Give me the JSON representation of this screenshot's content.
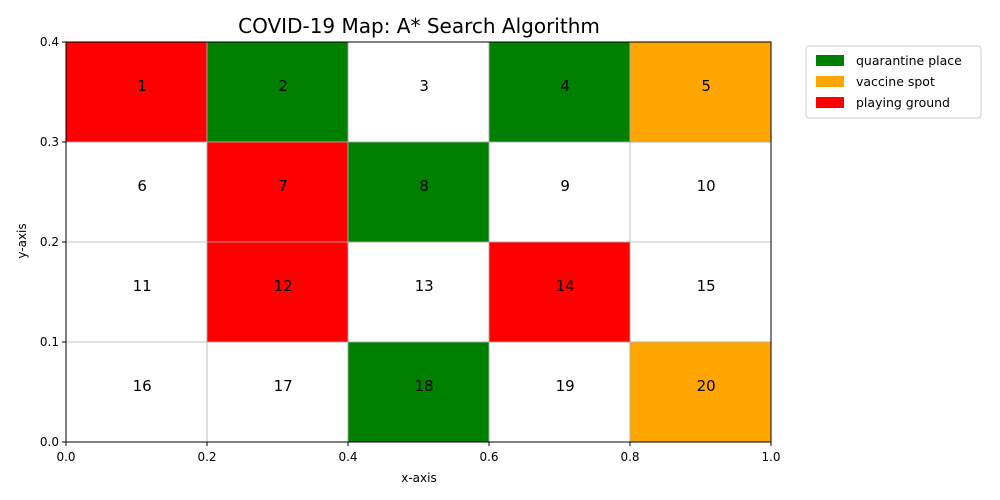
{
  "chart_data": {
    "type": "heatmap",
    "title": "COVID-19 Map: A* Search Algorithm",
    "xlabel": "x-axis",
    "ylabel": "y-axis",
    "xlim": [
      0.0,
      1.0
    ],
    "ylim": [
      0.0,
      0.4
    ],
    "xticks": [
      "0.0",
      "0.2",
      "0.4",
      "0.6",
      "0.8",
      "1.0"
    ],
    "yticks": [
      "0.0",
      "0.1",
      "0.2",
      "0.3",
      "0.4"
    ],
    "grid": true,
    "grid_columns": 5,
    "grid_rows": 4,
    "legend_position": "outside-top-right",
    "legend": [
      {
        "label": "quarantine place",
        "color": "#008000"
      },
      {
        "label": "vaccine spot",
        "color": "#FFA500"
      },
      {
        "label": "playing ground",
        "color": "#FF0000"
      }
    ],
    "cells": [
      {
        "label": "1",
        "type": "playing ground"
      },
      {
        "label": "2",
        "type": "quarantine place"
      },
      {
        "label": "3",
        "type": "empty"
      },
      {
        "label": "4",
        "type": "quarantine place"
      },
      {
        "label": "5",
        "type": "vaccine spot"
      },
      {
        "label": "6",
        "type": "empty"
      },
      {
        "label": "7",
        "type": "playing ground"
      },
      {
        "label": "8",
        "type": "quarantine place"
      },
      {
        "label": "9",
        "type": "empty"
      },
      {
        "label": "10",
        "type": "empty"
      },
      {
        "label": "11",
        "type": "empty"
      },
      {
        "label": "12",
        "type": "playing ground"
      },
      {
        "label": "13",
        "type": "empty"
      },
      {
        "label": "14",
        "type": "playing ground"
      },
      {
        "label": "15",
        "type": "empty"
      },
      {
        "label": "16",
        "type": "empty"
      },
      {
        "label": "17",
        "type": "empty"
      },
      {
        "label": "18",
        "type": "quarantine place"
      },
      {
        "label": "19",
        "type": "empty"
      },
      {
        "label": "20",
        "type": "vaccine spot"
      }
    ]
  }
}
